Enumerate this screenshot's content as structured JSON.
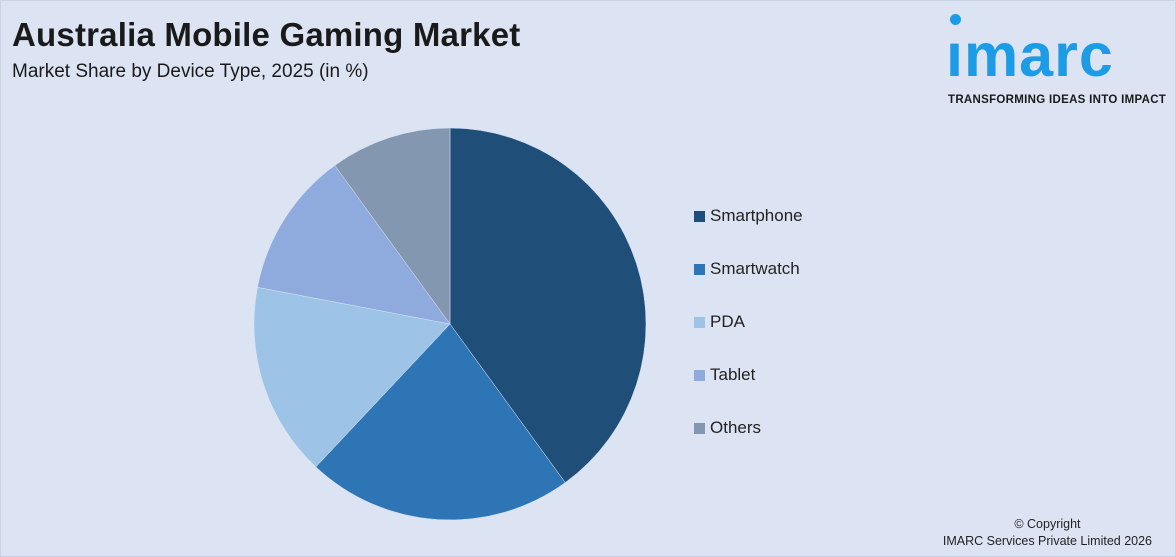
{
  "header": {
    "title": "Australia Mobile Gaming Market",
    "subtitle": "Market Share by Device Type, 2025 (in %)"
  },
  "logo": {
    "wordmark": "ımarc",
    "tagline": "TRANSFORMING IDEAS INTO IMPACT",
    "color": "#1c9be6"
  },
  "footer": {
    "copyright_line1": "© Copyright",
    "copyright_line2": "IMARC Services Private Limited 2026"
  },
  "chart_data": {
    "type": "pie",
    "title": "Australia Mobile Gaming Market",
    "subtitle": "Market Share by Device Type, 2025 (in %)",
    "legend_position": "right",
    "start_angle": "top",
    "direction": "clockwise",
    "slices": [
      {
        "label": "Smartphone",
        "value": 40,
        "color": "#1f4e79"
      },
      {
        "label": "Smartwatch",
        "value": 22,
        "color": "#2e75b6"
      },
      {
        "label": "PDA",
        "value": 16,
        "color": "#9dc3e6"
      },
      {
        "label": "Tablet",
        "value": 12,
        "color": "#8faadc"
      },
      {
        "label": "Others",
        "value": 10,
        "color": "#8497b0"
      }
    ]
  }
}
